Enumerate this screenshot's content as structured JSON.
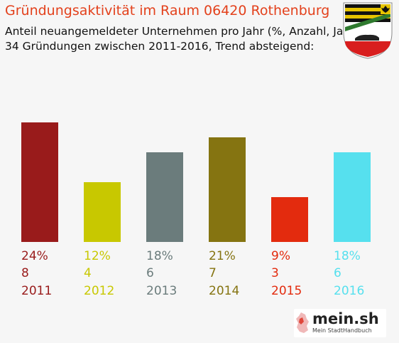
{
  "header": {
    "title": "Gründungsaktivität im Raum 06420 Rothenburg",
    "subtitle_line1": "Anteil neuangemeldeter Unternehmen pro Jahr (%, Anzahl, Jahr)",
    "subtitle_line2": "34 Gründungen zwischen 2011-2016, Trend absteigend:"
  },
  "branding": {
    "logo_text": "mein.sh",
    "logo_sub": "Mein StadtHandbuch"
  },
  "colors": {
    "title": "#e3411c",
    "background": "#f6f6f6"
  },
  "chart_data": {
    "type": "bar",
    "categories": [
      "2011",
      "2012",
      "2013",
      "2014",
      "2015",
      "2016"
    ],
    "series": [
      {
        "percent_labels": [
          "24%",
          "12%",
          "18%",
          "21%",
          "9%",
          "18%"
        ],
        "values": [
          8,
          4,
          6,
          7,
          3,
          6
        ]
      }
    ],
    "colors": [
      "#991b1b",
      "#c8c800",
      "#6b7c7c",
      "#857411",
      "#e32b0e",
      "#56e0ee"
    ],
    "ylim": [
      0,
      8
    ]
  }
}
